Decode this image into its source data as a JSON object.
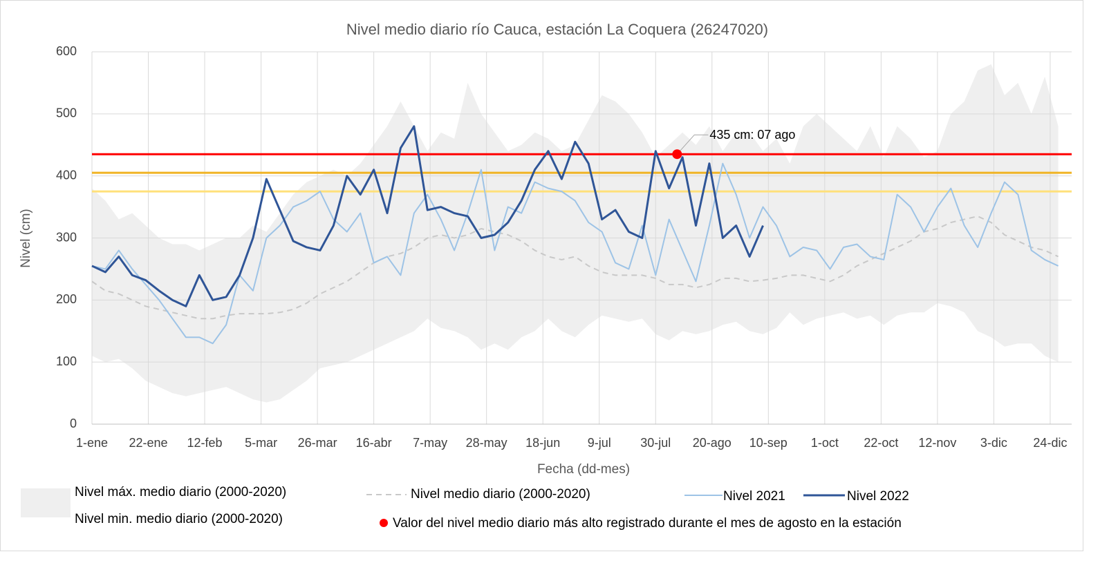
{
  "chart_data": {
    "type": "line",
    "title": "Nivel medio diario río Cauca, estación La Coquera (26247020)",
    "x_label": "Fecha (dd-mes)",
    "y_label": "Nivel (cm)",
    "x": [
      1,
      6,
      11,
      16,
      21,
      26,
      31,
      36,
      41,
      46,
      51,
      56,
      61,
      66,
      71,
      76,
      81,
      86,
      91,
      96,
      101,
      106,
      111,
      116,
      121,
      126,
      131,
      136,
      141,
      146,
      151,
      156,
      161,
      166,
      171,
      176,
      181,
      186,
      191,
      196,
      201,
      206,
      211,
      216,
      221,
      226,
      231,
      236,
      241,
      246,
      251,
      256,
      261,
      266,
      271,
      276,
      281,
      286,
      291,
      296,
      301,
      306,
      311,
      316,
      321,
      326,
      331,
      336,
      341,
      346,
      351,
      356,
      361
    ],
    "xlim": [
      1,
      366
    ],
    "xticks": [
      {
        "value": 1,
        "label": "1-ene"
      },
      {
        "value": 22,
        "label": "22-ene"
      },
      {
        "value": 43,
        "label": "12-feb"
      },
      {
        "value": 64,
        "label": "5-mar"
      },
      {
        "value": 85,
        "label": "26-mar"
      },
      {
        "value": 106,
        "label": "16-abr"
      },
      {
        "value": 127,
        "label": "7-may"
      },
      {
        "value": 148,
        "label": "28-may"
      },
      {
        "value": 169,
        "label": "18-jun"
      },
      {
        "value": 190,
        "label": "9-jul"
      },
      {
        "value": 211,
        "label": "30-jul"
      },
      {
        "value": 232,
        "label": "20-ago"
      },
      {
        "value": 253,
        "label": "10-sep"
      },
      {
        "value": 274,
        "label": "1-oct"
      },
      {
        "value": 295,
        "label": "22-oct"
      },
      {
        "value": 316,
        "label": "12-nov"
      },
      {
        "value": 337,
        "label": "3-dic"
      },
      {
        "value": 358,
        "label": "24-dic"
      }
    ],
    "ylim": [
      0,
      600
    ],
    "yticks": [
      0,
      100,
      200,
      300,
      400,
      500,
      600
    ],
    "grid": true,
    "band": {
      "color": "#efefef",
      "upper": {
        "name": "Nivel máx. medio diario (2000-2020)",
        "values": [
          380,
          360,
          330,
          340,
          320,
          300,
          290,
          290,
          280,
          290,
          300,
          300,
          320,
          310,
          340,
          370,
          390,
          400,
          410,
          400,
          420,
          450,
          480,
          520,
          480,
          440,
          470,
          460,
          550,
          500,
          470,
          440,
          450,
          470,
          460,
          440,
          450,
          490,
          530,
          520,
          500,
          470,
          430,
          450,
          470,
          450,
          480,
          440,
          470,
          470,
          440,
          460,
          420,
          480,
          500,
          480,
          460,
          440,
          480,
          430,
          480,
          460,
          430,
          440,
          500,
          520,
          570,
          580,
          530,
          550,
          500,
          560,
          480
        ]
      },
      "lower": {
        "name": "Nivel min. medio diario (2000-2020)",
        "values": [
          110,
          100,
          105,
          90,
          70,
          60,
          50,
          45,
          50,
          55,
          60,
          50,
          40,
          35,
          40,
          55,
          70,
          90,
          95,
          100,
          110,
          120,
          130,
          140,
          150,
          170,
          155,
          150,
          140,
          120,
          130,
          120,
          140,
          150,
          170,
          150,
          140,
          160,
          175,
          170,
          165,
          170,
          145,
          135,
          150,
          145,
          150,
          160,
          165,
          150,
          145,
          155,
          180,
          160,
          170,
          175,
          180,
          170,
          175,
          160,
          175,
          180,
          180,
          195,
          190,
          180,
          150,
          140,
          125,
          130,
          130,
          110,
          100
        ]
      }
    },
    "series": [
      {
        "name": "Nivel medio diario (2000-2020)",
        "color": "#c8c8c8",
        "dashed": true,
        "width": 2,
        "values": [
          230,
          215,
          210,
          200,
          190,
          185,
          180,
          175,
          170,
          170,
          175,
          178,
          178,
          178,
          180,
          185,
          195,
          210,
          220,
          230,
          245,
          260,
          270,
          275,
          285,
          300,
          305,
          300,
          305,
          315,
          310,
          305,
          295,
          280,
          270,
          265,
          270,
          255,
          245,
          240,
          240,
          240,
          235,
          225,
          225,
          220,
          225,
          235,
          235,
          230,
          232,
          235,
          240,
          240,
          235,
          230,
          240,
          255,
          265,
          275,
          285,
          295,
          310,
          315,
          325,
          330,
          335,
          325,
          305,
          295,
          285,
          280,
          270
        ]
      },
      {
        "name": "Nivel 2021",
        "color": "#9dc3e6",
        "dashed": false,
        "width": 2,
        "values": [
          255,
          250,
          280,
          250,
          225,
          200,
          170,
          140,
          140,
          130,
          160,
          240,
          215,
          300,
          320,
          350,
          360,
          375,
          330,
          310,
          340,
          260,
          270,
          240,
          340,
          370,
          330,
          280,
          340,
          410,
          280,
          350,
          340,
          390,
          380,
          375,
          360,
          325,
          310,
          260,
          250,
          320,
          240,
          330,
          280,
          230,
          320,
          420,
          370,
          300,
          350,
          320,
          270,
          285,
          280,
          250,
          285,
          290,
          270,
          265,
          370,
          350,
          310,
          350,
          380,
          320,
          285,
          340,
          390,
          370,
          280,
          265,
          255
        ]
      },
      {
        "name": "Nivel 2022",
        "color": "#2f5597",
        "dashed": false,
        "width": 3,
        "values": [
          255,
          245,
          270,
          240,
          232,
          215,
          200,
          190,
          240,
          200,
          205,
          240,
          300,
          395,
          345,
          295,
          285,
          280,
          320,
          400,
          370,
          410,
          340,
          445,
          480,
          345,
          350,
          340,
          335,
          300,
          305,
          325,
          360,
          410,
          440,
          395,
          455,
          420,
          330,
          345,
          310,
          300,
          440,
          380,
          430,
          320,
          420,
          300,
          320,
          270,
          320,
          null,
          null,
          null,
          null,
          null,
          null,
          null,
          null,
          null,
          null,
          null,
          null,
          null,
          null,
          null,
          null,
          null,
          null,
          null,
          null,
          null,
          null
        ]
      }
    ],
    "reference_lines": [
      {
        "value": 435,
        "color": "#ff0000"
      },
      {
        "value": 405,
        "color": "#f0b323"
      },
      {
        "value": 375,
        "color": "#ffe07a"
      }
    ],
    "annotation": {
      "x": 219,
      "y": 435,
      "color": "#ff0000",
      "label": "435 cm: 07 ago",
      "legend": "Valor del nivel medio diario más alto registrado durante el mes de agosto en la estación"
    }
  }
}
